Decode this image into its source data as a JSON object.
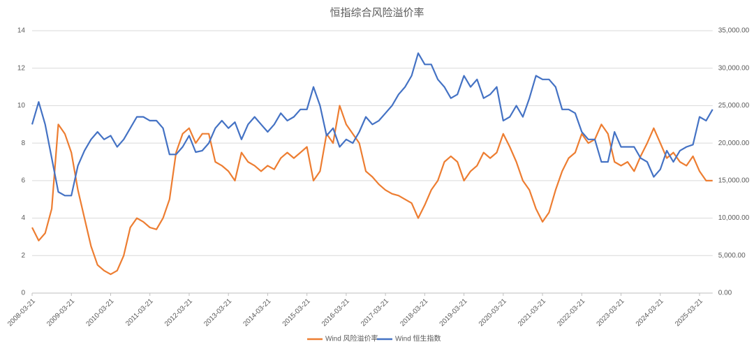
{
  "chart_data": {
    "type": "line",
    "title": "恒指综合风险溢价率",
    "categories": [
      "2008-03-21",
      null,
      null,
      null,
      null,
      null,
      "2009-03-21",
      null,
      null,
      null,
      null,
      null,
      "2010-03-21",
      null,
      null,
      null,
      null,
      null,
      "2011-03-21",
      null,
      null,
      null,
      null,
      null,
      "2012-03-21",
      null,
      null,
      null,
      null,
      null,
      "2013-03-21",
      null,
      null,
      null,
      null,
      null,
      "2014-03-21",
      null,
      null,
      null,
      null,
      null,
      "2015-03-21",
      null,
      null,
      null,
      null,
      null,
      "2016-03-21",
      null,
      null,
      null,
      null,
      null,
      "2017-03-21",
      null,
      null,
      null,
      null,
      null,
      "2018-03-21",
      null,
      null,
      null,
      null,
      null,
      "2019-03-21",
      null,
      null,
      null,
      null,
      null,
      "2020-03-21",
      null,
      null,
      null,
      null,
      null,
      "2021-03-21",
      null,
      null,
      null,
      null,
      null,
      "2022-03-21",
      null,
      null,
      null,
      null,
      null,
      "2023-03-21",
      null,
      null,
      null,
      null,
      null,
      "2024-03-21",
      null,
      null,
      null,
      null,
      null,
      "2025-03-21",
      null,
      null
    ],
    "series": [
      {
        "name": "Wind 风险溢价率",
        "color": "#ed7d31",
        "values": [
          3.5,
          2.8,
          3.2,
          4.5,
          9.0,
          8.5,
          7.5,
          5.5,
          4.0,
          2.5,
          1.5,
          1.2,
          1.0,
          1.2,
          2.0,
          3.5,
          4.0,
          3.8,
          3.5,
          3.4,
          4.0,
          5.0,
          7.5,
          8.5,
          8.8,
          8.0,
          8.5,
          8.5,
          7.0,
          6.8,
          6.5,
          6.0,
          7.5,
          7.0,
          6.8,
          6.5,
          6.8,
          6.6,
          7.2,
          7.5,
          7.2,
          7.5,
          7.8,
          6.0,
          6.5,
          8.5,
          8.0,
          10.0,
          9.0,
          8.5,
          8.0,
          6.5,
          6.2,
          5.8,
          5.5,
          5.3,
          5.2,
          5.0,
          4.8,
          4.0,
          4.7,
          5.5,
          6.0,
          7.0,
          7.3,
          7.0,
          6.0,
          6.5,
          6.8,
          7.5,
          7.2,
          7.5,
          8.5,
          7.8,
          7.0,
          6.0,
          5.5,
          4.5,
          3.8,
          4.3,
          5.5,
          6.5,
          7.2,
          7.5,
          8.5,
          8.0,
          8.2,
          9.0,
          8.5,
          7.0,
          6.8,
          7.0,
          6.5,
          7.3,
          8.0,
          8.8,
          8.0,
          7.2,
          7.5,
          7.0,
          6.8,
          7.3,
          6.5,
          6.0,
          6.0
        ]
      },
      {
        "name": "Wind 恒生指数",
        "color": "#4472c4",
        "axis": "y2",
        "values": [
          22500,
          25500,
          22500,
          18000,
          13500,
          13000,
          13000,
          17000,
          19000,
          20500,
          21500,
          20500,
          21000,
          19500,
          20500,
          22000,
          23500,
          23500,
          23000,
          23000,
          22000,
          18500,
          18500,
          19500,
          21000,
          18800,
          19000,
          20000,
          22000,
          23000,
          22000,
          22800,
          20500,
          22500,
          23500,
          22500,
          21500,
          22500,
          24000,
          23000,
          23500,
          24500,
          24500,
          27500,
          25000,
          21000,
          22000,
          19500,
          20500,
          20000,
          21500,
          23500,
          22500,
          23000,
          24000,
          25000,
          26500,
          27500,
          29000,
          32000,
          30500,
          30500,
          28500,
          27500,
          26000,
          26500,
          29000,
          27500,
          28500,
          26000,
          26500,
          27500,
          23000,
          23500,
          25000,
          23500,
          26000,
          29000,
          28500,
          28500,
          27500,
          24500,
          24500,
          24000,
          21500,
          20500,
          20500,
          17500,
          17500,
          21500,
          19500,
          19500,
          19500,
          18000,
          17500,
          15500,
          16500,
          19000,
          17500,
          19000,
          19500,
          19800,
          23500,
          23000,
          24500
        ]
      }
    ],
    "ylim": [
      0,
      14
    ],
    "yticks": [
      0,
      2,
      4,
      6,
      8,
      10,
      12,
      14
    ],
    "y2lim": [
      0,
      35000
    ],
    "y2ticks": [
      {
        "value": 0,
        "label": "0.00"
      },
      {
        "value": 5000,
        "label": "5,000.00"
      },
      {
        "value": 10000,
        "label": "10,000.00"
      },
      {
        "value": 15000,
        "label": "15,000.00"
      },
      {
        "value": 20000,
        "label": "20,000.00"
      },
      {
        "value": 25000,
        "label": "25,000.00"
      },
      {
        "value": 30000,
        "label": "30,000.00"
      },
      {
        "value": 35000,
        "label": "35,000.00"
      }
    ],
    "grid": true,
    "legend": "bottom"
  }
}
